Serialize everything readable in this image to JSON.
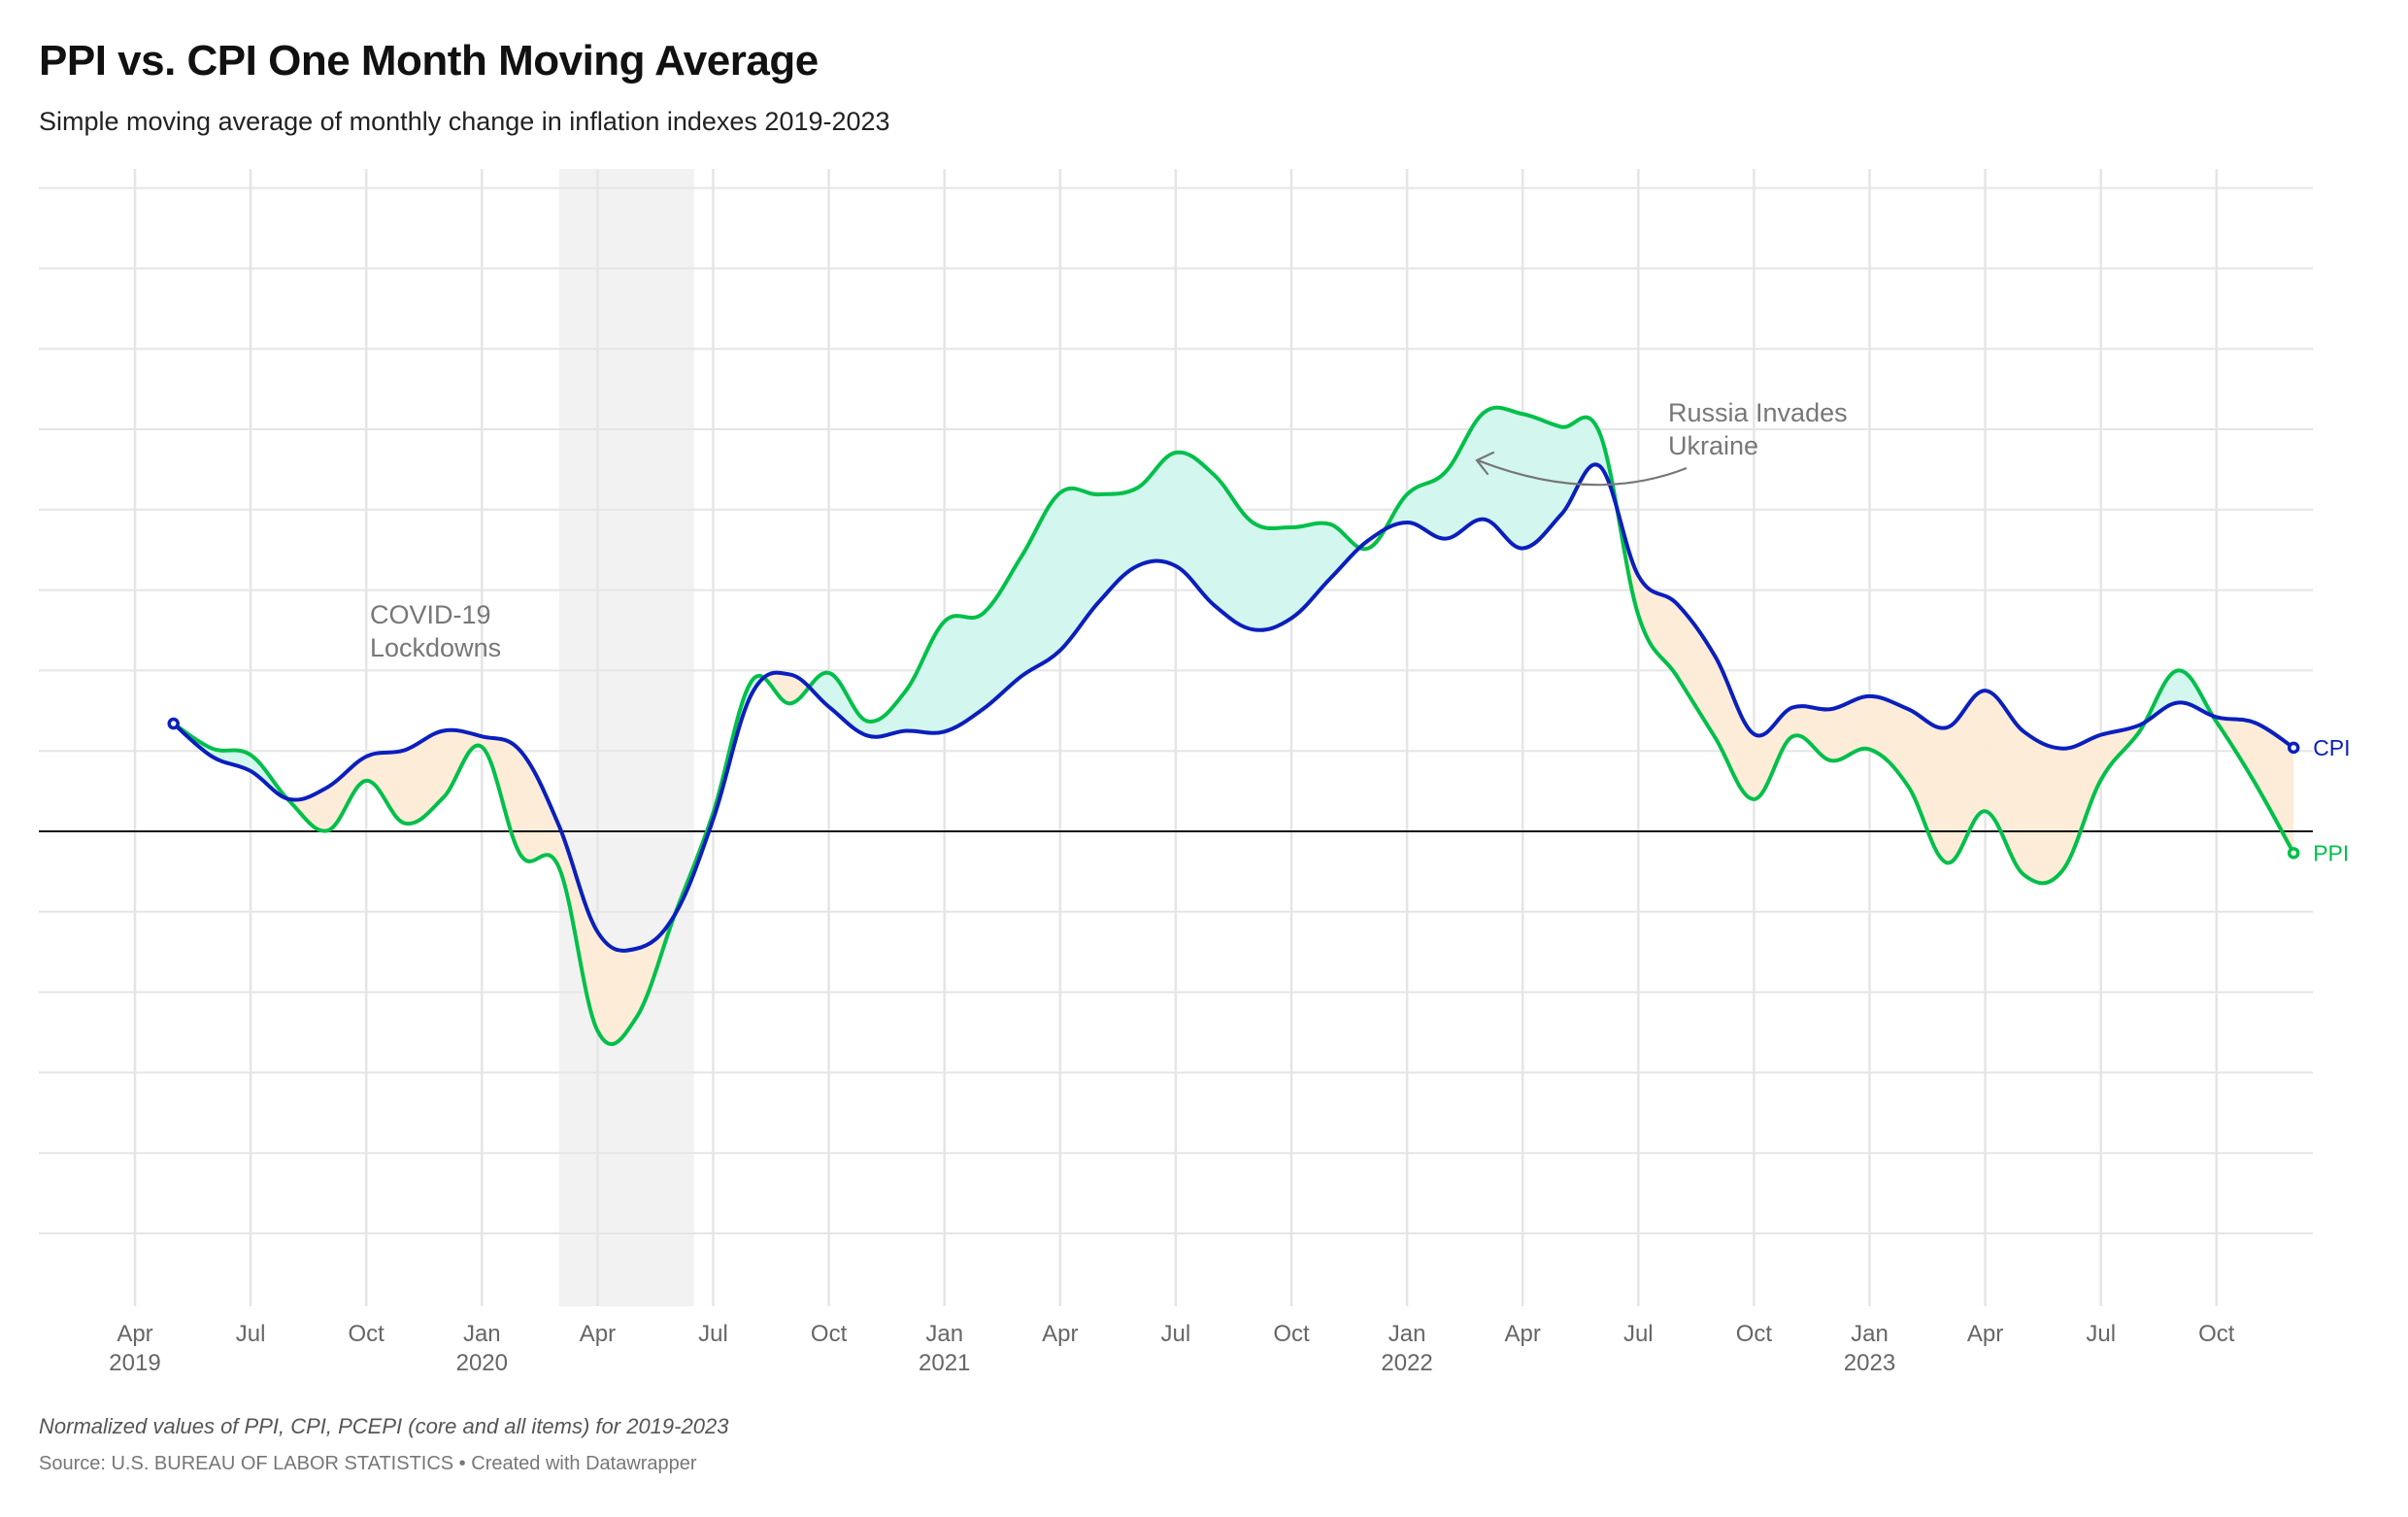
{
  "header": {
    "title": "PPI vs. CPI One Month Moving Average",
    "subtitle": "Simple moving average of monthly change in inflation indexes 2019-2023"
  },
  "footer": {
    "notes": "Normalized values of PPI, CPI, PCEPI (core and all items) for 2019-2023",
    "source": "Source: U.S. BUREAU OF LABOR STATISTICS • Created with Datawrapper"
  },
  "colors": {
    "cpi": "#0a1fbd",
    "ppi": "#00c04a",
    "fill_ppi_above": "#d3f7ee",
    "fill_ppi_below": "#fdebd6",
    "highlight_band": "#f2f2f2",
    "grid": "#e5e5e5",
    "zero_line": "#111111",
    "annotation": "#777777"
  },
  "chart_data": {
    "type": "line",
    "title": "PPI vs. CPI One Month Moving Average",
    "subtitle": "Simple moving average of monthly change in inflation indexes 2019-2023",
    "xlabel": "",
    "ylabel": "",
    "x_start": "2019-05",
    "x_end": "2023-12",
    "x": [
      "2019-05",
      "2019-06",
      "2019-07",
      "2019-08",
      "2019-09",
      "2019-10",
      "2019-11",
      "2019-12",
      "2020-01",
      "2020-02",
      "2020-03",
      "2020-04",
      "2020-05",
      "2020-06",
      "2020-07",
      "2020-08",
      "2020-09",
      "2020-10",
      "2020-11",
      "2020-12",
      "2021-01",
      "2021-02",
      "2021-03",
      "2021-04",
      "2021-05",
      "2021-06",
      "2021-07",
      "2021-08",
      "2021-09",
      "2021-10",
      "2021-11",
      "2021-12",
      "2022-01",
      "2022-02",
      "2022-03",
      "2022-04",
      "2022-05",
      "2022-06",
      "2022-07",
      "2022-08",
      "2022-09",
      "2022-10",
      "2022-11",
      "2022-12",
      "2023-01",
      "2023-02",
      "2023-03",
      "2023-04",
      "2023-05",
      "2023-06",
      "2023-07",
      "2023-08",
      "2023-09",
      "2023-10",
      "2023-11",
      "2023-12"
    ],
    "series": [
      {
        "name": "CPI",
        "color": "#0a1fbd",
        "values": [
          1.34,
          0.93,
          0.75,
          0.4,
          0.55,
          0.93,
          1.01,
          1.25,
          1.18,
          1.0,
          0.07,
          -1.25,
          -1.46,
          -1.04,
          0.15,
          1.71,
          1.95,
          1.55,
          1.19,
          1.25,
          1.24,
          1.52,
          1.93,
          2.25,
          2.85,
          3.3,
          3.3,
          2.81,
          2.51,
          2.65,
          3.14,
          3.62,
          3.84,
          3.64,
          3.88,
          3.52,
          3.94,
          4.54,
          3.18,
          2.83,
          2.17,
          1.21,
          1.54,
          1.52,
          1.68,
          1.52,
          1.29,
          1.75,
          1.24,
          1.03,
          1.2,
          1.32,
          1.6,
          1.42,
          1.35,
          1.04
        ]
      },
      {
        "name": "PPI",
        "color": "#00c04a",
        "values": [
          1.34,
          1.03,
          0.95,
          0.38,
          0.01,
          0.63,
          0.1,
          0.42,
          1.05,
          -0.29,
          -0.45,
          -2.48,
          -2.32,
          -1.04,
          0.23,
          1.87,
          1.59,
          1.97,
          1.37,
          1.75,
          2.61,
          2.71,
          3.42,
          4.21,
          4.19,
          4.27,
          4.71,
          4.43,
          3.84,
          3.78,
          3.82,
          3.52,
          4.19,
          4.47,
          5.21,
          5.19,
          5.03,
          4.95,
          2.69,
          1.93,
          1.16,
          0.4,
          1.18,
          0.88,
          1.02,
          0.56,
          -0.39,
          0.25,
          -0.54,
          -0.49,
          0.64,
          1.24,
          2.0,
          1.36,
          0.6,
          -0.27
        ]
      }
    ],
    "ylim": [
      -6,
      8
    ],
    "y_gridlines": [
      -5,
      -4,
      -3,
      -2,
      -1,
      0,
      1,
      2,
      3,
      4,
      5,
      6,
      7,
      8
    ],
    "y_tick_labels_shown": false,
    "grid": true,
    "x_ticks": [
      {
        "date": "2019-04",
        "label": "Apr",
        "year": "2019"
      },
      {
        "date": "2019-07",
        "label": "Jul",
        "year": ""
      },
      {
        "date": "2019-10",
        "label": "Oct",
        "year": ""
      },
      {
        "date": "2020-01",
        "label": "Jan",
        "year": "2020"
      },
      {
        "date": "2020-04",
        "label": "Apr",
        "year": ""
      },
      {
        "date": "2020-07",
        "label": "Jul",
        "year": ""
      },
      {
        "date": "2020-10",
        "label": "Oct",
        "year": ""
      },
      {
        "date": "2021-01",
        "label": "Jan",
        "year": "2021"
      },
      {
        "date": "2021-04",
        "label": "Apr",
        "year": ""
      },
      {
        "date": "2021-07",
        "label": "Jul",
        "year": ""
      },
      {
        "date": "2021-10",
        "label": "Oct",
        "year": ""
      },
      {
        "date": "2022-01",
        "label": "Jan",
        "year": "2022"
      },
      {
        "date": "2022-04",
        "label": "Apr",
        "year": ""
      },
      {
        "date": "2022-07",
        "label": "Jul",
        "year": ""
      },
      {
        "date": "2022-10",
        "label": "Oct",
        "year": ""
      },
      {
        "date": "2023-01",
        "label": "Jan",
        "year": "2023"
      },
      {
        "date": "2023-04",
        "label": "Apr",
        "year": ""
      },
      {
        "date": "2023-07",
        "label": "Jul",
        "year": ""
      },
      {
        "date": "2023-10",
        "label": "Oct",
        "year": ""
      }
    ],
    "highlight_range": {
      "from": "2020-03",
      "to": "2020-06",
      "label": "COVID-19 Lockdowns"
    },
    "annotations": [
      {
        "id": "covid",
        "lines": [
          "COVID-19",
          "Lockdowns"
        ],
        "anchor_date": "2019-10",
        "anchor_value": 2.7
      },
      {
        "id": "russia",
        "lines": [
          "Russia Invades",
          "Ukraine"
        ],
        "anchor_date": "2022-07",
        "anchor_value": 5.3,
        "arrow_to_date": "2022-03",
        "arrow_to_value": 4.6
      }
    ],
    "area_fill": "between CPI and PPI; teal where PPI > CPI, orange where PPI < CPI",
    "legend": "direct labels at line ends (right)",
    "end_labels": [
      "CPI",
      "PPI"
    ]
  }
}
